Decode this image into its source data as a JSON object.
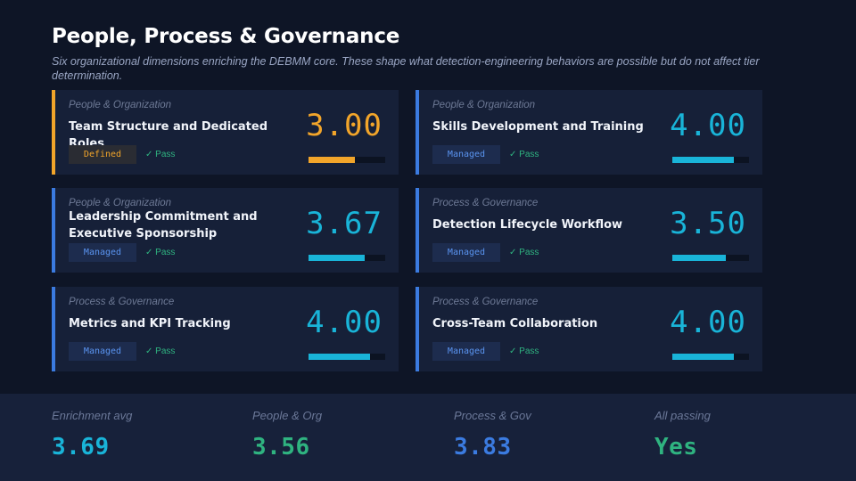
{
  "header": {
    "title": "People, Process & Governance",
    "subtitle": "Six organizational dimensions enriching the DEBMM core. These shape what detection-engineering behaviors are possible but do not affect tier determination."
  },
  "colors": {
    "defined": "#f2a52a",
    "managed": "#3b7be0",
    "score_managed": "#19b4d8",
    "pass": "#2fb380"
  },
  "cards": [
    {
      "category": "People & Organization",
      "name": "Team Structure and Dedicated Roles",
      "level": "Defined",
      "status": "✓ Pass",
      "score": "3.00",
      "score_value": 3.0
    },
    {
      "category": "People & Organization",
      "name": "Skills Development and Training",
      "level": "Managed",
      "status": "✓ Pass",
      "score": "4.00",
      "score_value": 4.0
    },
    {
      "category": "People & Organization",
      "name": "Leadership Commitment and Executive Sponsorship",
      "level": "Managed",
      "status": "✓ Pass",
      "score": "3.67",
      "score_value": 3.67
    },
    {
      "category": "Process & Governance",
      "name": "Detection Lifecycle Workflow",
      "level": "Managed",
      "status": "✓ Pass",
      "score": "3.50",
      "score_value": 3.5
    },
    {
      "category": "Process & Governance",
      "name": "Metrics and KPI Tracking",
      "level": "Managed",
      "status": "✓ Pass",
      "score": "4.00",
      "score_value": 4.0
    },
    {
      "category": "Process & Governance",
      "name": "Cross-Team Collaboration",
      "level": "Managed",
      "status": "✓ Pass",
      "score": "4.00",
      "score_value": 4.0
    }
  ],
  "score_max": 5,
  "summary": [
    {
      "label": "Enrichment avg",
      "value": "3.69",
      "color": "#19b4d8"
    },
    {
      "label": "People & Org",
      "value": "3.56",
      "color": "#2fb380"
    },
    {
      "label": "Process & Gov",
      "value": "3.83",
      "color": "#3b7be0"
    },
    {
      "label": "All passing",
      "value": "Yes",
      "color": "#2fb380"
    }
  ]
}
